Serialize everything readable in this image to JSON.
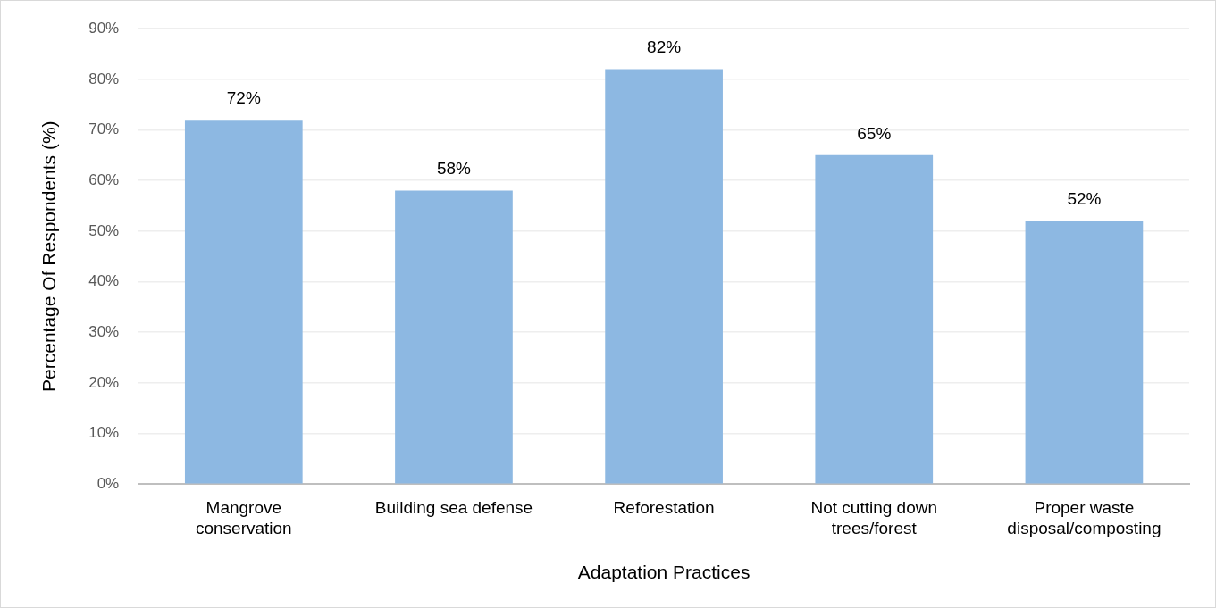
{
  "chart_data": {
    "type": "bar",
    "xlabel": "Adaptation Practices",
    "ylabel": "Percentage Of Respondents (%)",
    "categories": [
      "Mangrove conservation",
      "Building sea defense",
      "Reforestation",
      "Not cutting down trees/forest",
      "Proper waste disposal/composting"
    ],
    "values": [
      72,
      58,
      82,
      65,
      52
    ],
    "color": "#8db8e2",
    "ylim": [
      0,
      90
    ],
    "yticks": [
      {
        "value": 0,
        "label": "0%"
      },
      {
        "value": 10,
        "label": "10%"
      },
      {
        "value": 20,
        "label": "20%"
      },
      {
        "value": 30,
        "label": "30%"
      },
      {
        "value": 40,
        "label": "40%"
      },
      {
        "value": 50,
        "label": "50%"
      },
      {
        "value": 60,
        "label": "60%"
      },
      {
        "value": 70,
        "label": "70%"
      },
      {
        "value": 80,
        "label": "80%"
      },
      {
        "value": 90,
        "label": "90%"
      }
    ],
    "value_labels": [
      "72%",
      "58%",
      "82%",
      "65%",
      "52%"
    ],
    "grid": "y",
    "legend": false
  }
}
